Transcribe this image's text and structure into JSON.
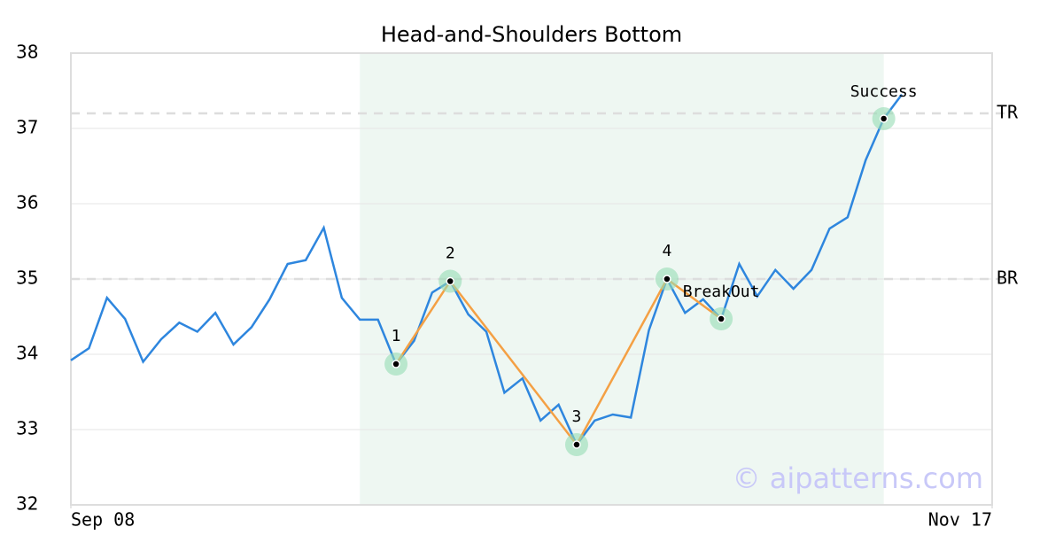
{
  "chart_data": {
    "type": "line",
    "title": "Head-and-Shoulders Bottom",
    "x": [
      0,
      1,
      2,
      3,
      4,
      5,
      6,
      7,
      8,
      9,
      10,
      11,
      12,
      13,
      14,
      15,
      16,
      17,
      18,
      19,
      20,
      21,
      22,
      23,
      24,
      25,
      26,
      27,
      28,
      29,
      30,
      31,
      32,
      33,
      34,
      35,
      36,
      37,
      38,
      39,
      40,
      41,
      42,
      43,
      44,
      45,
      46
    ],
    "values": [
      33.92,
      34.08,
      34.75,
      34.47,
      33.9,
      34.2,
      34.42,
      34.3,
      34.55,
      34.13,
      34.36,
      34.73,
      35.2,
      35.25,
      35.68,
      34.75,
      34.46,
      34.46,
      33.87,
      34.18,
      34.82,
      34.97,
      34.53,
      34.3,
      33.49,
      33.68,
      33.12,
      33.33,
      32.8,
      33.12,
      33.2,
      33.16,
      34.32,
      35.0,
      34.55,
      34.73,
      34.47,
      35.2,
      34.77,
      35.12,
      34.87,
      35.12,
      35.67,
      35.82,
      36.58,
      37.13,
      37.45
    ],
    "color": "#2e86de",
    "xlim": [
      0,
      51
    ],
    "xticks": [
      {
        "value": 0,
        "label": "Sep 08"
      },
      {
        "value": 51,
        "label": "Nov 17"
      }
    ],
    "ylim": [
      32,
      38
    ],
    "yticks": [
      32,
      33,
      34,
      35,
      36,
      37,
      38
    ],
    "grid": true,
    "shade": [
      16,
      45
    ],
    "pattern_color": "#f4a044",
    "pattern_points": [
      {
        "label": "1",
        "x": 18,
        "y": 33.87
      },
      {
        "label": "2",
        "x": 21,
        "y": 34.97
      },
      {
        "label": "3",
        "x": 28,
        "y": 32.8
      },
      {
        "label": "4",
        "x": 33,
        "y": 35.0
      },
      {
        "label": "BreakOut",
        "x": 36,
        "y": 34.47
      }
    ],
    "success_point": {
      "label": "Success",
      "x": 45,
      "y": 37.13
    },
    "levels": [
      {
        "label": "TR",
        "value": 37.2
      },
      {
        "label": "BR",
        "value": 35.0
      }
    ],
    "watermark": "© aipatterns.com"
  }
}
